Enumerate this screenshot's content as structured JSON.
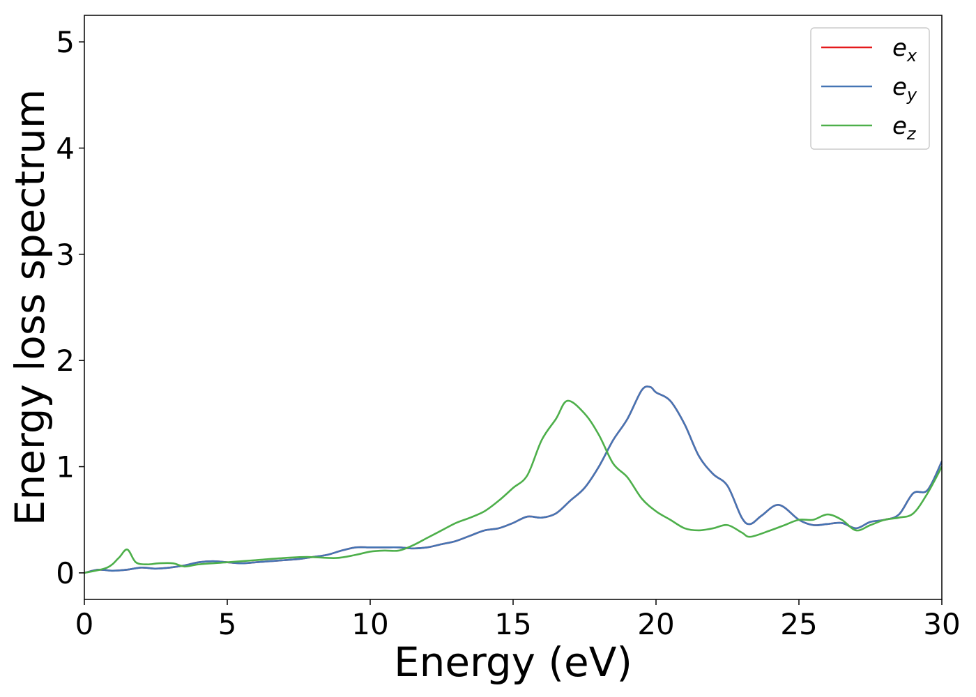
{
  "chart_data": {
    "type": "line",
    "xlabel": "Energy (eV)",
    "ylabel": "Energy loss spectrum",
    "xlim": [
      0,
      30
    ],
    "ylim": [
      -0.25,
      5.25
    ],
    "xticks": [
      0,
      5,
      10,
      15,
      20,
      25,
      30
    ],
    "yticks": [
      0,
      1,
      2,
      3,
      4,
      5
    ],
    "grid": false,
    "legend_position": "top-right",
    "series": [
      {
        "name": "e_x",
        "label_base": "e",
        "label_sub": "x",
        "color": "#e41a1c",
        "x": [
          0,
          0.5,
          1,
          1.5,
          2,
          2.5,
          3,
          3.5,
          4,
          4.5,
          5,
          5.5,
          6,
          6.5,
          7,
          7.5,
          8,
          8.5,
          9,
          9.5,
          10,
          10.5,
          11,
          11.5,
          12,
          12.5,
          13,
          13.5,
          14,
          14.5,
          15,
          15.5,
          16,
          16.5,
          17,
          17.5,
          18,
          18.5,
          19,
          19.5,
          19.8,
          20,
          20.5,
          21,
          21.5,
          22,
          22.5,
          23,
          23.3,
          23.7,
          24.3,
          25,
          25.5,
          26,
          26.5,
          27,
          27.5,
          28,
          28.5,
          29,
          29.5,
          30
        ],
        "y": [
          0,
          0.03,
          0.02,
          0.03,
          0.05,
          0.04,
          0.05,
          0.07,
          0.1,
          0.11,
          0.1,
          0.09,
          0.1,
          0.11,
          0.12,
          0.13,
          0.15,
          0.17,
          0.21,
          0.24,
          0.24,
          0.24,
          0.24,
          0.23,
          0.24,
          0.27,
          0.3,
          0.35,
          0.4,
          0.42,
          0.47,
          0.53,
          0.52,
          0.56,
          0.68,
          0.8,
          1.0,
          1.25,
          1.45,
          1.72,
          1.75,
          1.7,
          1.62,
          1.4,
          1.1,
          0.93,
          0.82,
          0.52,
          0.46,
          0.54,
          0.64,
          0.5,
          0.45,
          0.46,
          0.47,
          0.42,
          0.48,
          0.5,
          0.55,
          0.75,
          0.78,
          1.05
        ]
      },
      {
        "name": "e_y",
        "label_base": "e",
        "label_sub": "y",
        "color": "#4575b4",
        "x": [
          0,
          0.5,
          1,
          1.5,
          2,
          2.5,
          3,
          3.5,
          4,
          4.5,
          5,
          5.5,
          6,
          6.5,
          7,
          7.5,
          8,
          8.5,
          9,
          9.5,
          10,
          10.5,
          11,
          11.5,
          12,
          12.5,
          13,
          13.5,
          14,
          14.5,
          15,
          15.5,
          16,
          16.5,
          17,
          17.5,
          18,
          18.5,
          19,
          19.5,
          19.8,
          20,
          20.5,
          21,
          21.5,
          22,
          22.5,
          23,
          23.3,
          23.7,
          24.3,
          25,
          25.5,
          26,
          26.5,
          27,
          27.5,
          28,
          28.5,
          29,
          29.5,
          30
        ],
        "y": [
          0,
          0.03,
          0.02,
          0.03,
          0.05,
          0.04,
          0.05,
          0.07,
          0.1,
          0.11,
          0.1,
          0.09,
          0.1,
          0.11,
          0.12,
          0.13,
          0.15,
          0.17,
          0.21,
          0.24,
          0.24,
          0.24,
          0.24,
          0.23,
          0.24,
          0.27,
          0.3,
          0.35,
          0.4,
          0.42,
          0.47,
          0.53,
          0.52,
          0.56,
          0.68,
          0.8,
          1.0,
          1.25,
          1.45,
          1.72,
          1.75,
          1.7,
          1.62,
          1.4,
          1.1,
          0.93,
          0.82,
          0.52,
          0.46,
          0.54,
          0.64,
          0.5,
          0.45,
          0.46,
          0.47,
          0.42,
          0.48,
          0.5,
          0.55,
          0.75,
          0.78,
          1.05
        ]
      },
      {
        "name": "e_z",
        "label_base": "e",
        "label_sub": "z",
        "color": "#4daf4a",
        "x": [
          0,
          0.8,
          1.2,
          1.5,
          1.8,
          2.2,
          2.6,
          3.1,
          3.5,
          4,
          5,
          6,
          7,
          7.8,
          8.8,
          9.5,
          10,
          10.5,
          11,
          11.5,
          12,
          12.5,
          13,
          13.5,
          14,
          14.5,
          15,
          15.5,
          16,
          16.5,
          16.9,
          17.5,
          18,
          18.5,
          19,
          19.5,
          20,
          20.5,
          21,
          21.5,
          22,
          22.5,
          23,
          23.3,
          24,
          24.5,
          25,
          25.5,
          26,
          26.5,
          27,
          27.5,
          28,
          28.5,
          29,
          29.5,
          30
        ],
        "y": [
          0,
          0.05,
          0.14,
          0.22,
          0.1,
          0.08,
          0.09,
          0.09,
          0.06,
          0.08,
          0.1,
          0.12,
          0.14,
          0.15,
          0.14,
          0.17,
          0.2,
          0.21,
          0.21,
          0.26,
          0.33,
          0.4,
          0.47,
          0.52,
          0.58,
          0.68,
          0.8,
          0.92,
          1.25,
          1.45,
          1.62,
          1.5,
          1.3,
          1.03,
          0.9,
          0.7,
          0.58,
          0.5,
          0.42,
          0.4,
          0.42,
          0.45,
          0.38,
          0.34,
          0.4,
          0.45,
          0.5,
          0.5,
          0.55,
          0.5,
          0.4,
          0.45,
          0.5,
          0.52,
          0.56,
          0.75,
          1.0
        ]
      }
    ]
  }
}
